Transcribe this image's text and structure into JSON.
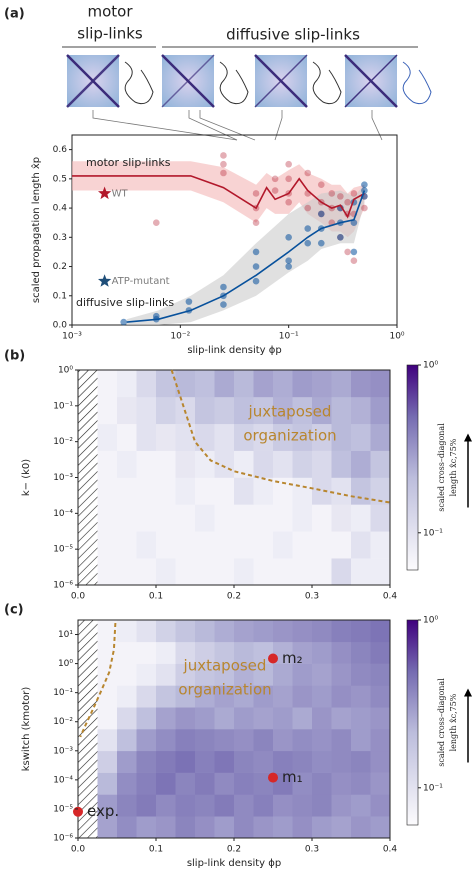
{
  "chart_data": [
    {
      "type": "line",
      "panel_label": "(a)",
      "headers": [
        {
          "lines": [
            "motor",
            "slip-links"
          ]
        },
        {
          "lines": [
            "diffusive slip-links"
          ]
        }
      ],
      "xlabel": "slip-link density ϕp",
      "ylabel": "scaled propagation length x̂p",
      "xlog": true,
      "xlim": [
        0.001,
        1
      ],
      "ylim": [
        0,
        0.65
      ],
      "xticks": [
        {
          "value": 0.001,
          "label": "10⁻³"
        },
        {
          "value": 0.01,
          "label": "10⁻²"
        },
        {
          "value": 0.1,
          "label": "10⁻¹"
        },
        {
          "value": 1,
          "label": "10⁰"
        }
      ],
      "yticks": [
        {
          "value": 0,
          "label": "0.0"
        },
        0.1,
        0.2,
        0.3,
        0.4,
        0.5,
        0.6
      ],
      "series": [
        {
          "name": "motor slip-links",
          "color": "#b2182b",
          "x": [
            0.001,
            0.0032,
            0.0063,
            0.0125,
            0.025,
            0.05,
            0.0625,
            0.075,
            0.1,
            0.125,
            0.15,
            0.2,
            0.25,
            0.3,
            0.35,
            0.4,
            0.5
          ],
          "values": [
            0.51,
            0.51,
            0.51,
            0.51,
            0.47,
            0.4,
            0.47,
            0.43,
            0.45,
            0.5,
            0.46,
            0.42,
            0.4,
            0.41,
            0.37,
            0.43,
            0.45
          ],
          "band_lower": [
            0.46,
            0.46,
            0.46,
            0.46,
            0.42,
            0.35,
            0.4,
            0.38,
            0.38,
            0.42,
            0.38,
            0.35,
            0.32,
            0.32,
            0.3,
            0.32,
            0.4
          ],
          "band_upper": [
            0.56,
            0.56,
            0.56,
            0.56,
            0.54,
            0.48,
            0.52,
            0.5,
            0.53,
            0.55,
            0.52,
            0.5,
            0.48,
            0.48,
            0.45,
            0.47,
            0.48
          ],
          "scatter_x": [
            0.006,
            0.025,
            0.025,
            0.025,
            0.05,
            0.05,
            0.05,
            0.075,
            0.075,
            0.1,
            0.1,
            0.1,
            0.1,
            0.15,
            0.15,
            0.15,
            0.2,
            0.2,
            0.2,
            0.25,
            0.25,
            0.25,
            0.3,
            0.3,
            0.3,
            0.35,
            0.35,
            0.35,
            0.4,
            0.4,
            0.4,
            0.5,
            0.5
          ],
          "scatter_y": [
            0.35,
            0.58,
            0.55,
            0.52,
            0.45,
            0.4,
            0.35,
            0.5,
            0.46,
            0.55,
            0.5,
            0.45,
            0.42,
            0.52,
            0.45,
            0.4,
            0.48,
            0.42,
            0.38,
            0.45,
            0.4,
            0.35,
            0.44,
            0.4,
            0.3,
            0.42,
            0.38,
            0.25,
            0.45,
            0.38,
            0.22,
            0.44,
            0.4
          ]
        },
        {
          "name": "diffusive slip-links",
          "color": "#08519c",
          "x": [
            0.0032,
            0.0063,
            0.0125,
            0.025,
            0.05,
            0.1,
            0.15,
            0.2,
            0.3,
            0.4,
            0.5
          ],
          "values": [
            0.01,
            0.02,
            0.05,
            0.1,
            0.17,
            0.25,
            0.3,
            0.33,
            0.35,
            0.36,
            0.46
          ],
          "band_lower": [
            0,
            0,
            0.01,
            0.05,
            0.1,
            0.18,
            0.22,
            0.26,
            0.28,
            0.28,
            0.42
          ],
          "band_upper": [
            0.02,
            0.05,
            0.1,
            0.17,
            0.28,
            0.38,
            0.42,
            0.45,
            0.46,
            0.44,
            0.48
          ],
          "scatter_x": [
            0.003,
            0.006,
            0.006,
            0.012,
            0.012,
            0.025,
            0.025,
            0.025,
            0.05,
            0.05,
            0.05,
            0.1,
            0.1,
            0.1,
            0.15,
            0.15,
            0.2,
            0.2,
            0.2,
            0.3,
            0.3,
            0.3,
            0.4,
            0.4,
            0.4,
            0.5,
            0.5,
            0.5
          ],
          "scatter_y": [
            0.01,
            0.02,
            0.03,
            0.05,
            0.08,
            0.13,
            0.1,
            0.07,
            0.25,
            0.2,
            0.15,
            0.3,
            0.22,
            0.2,
            0.33,
            0.28,
            0.38,
            0.33,
            0.28,
            0.4,
            0.35,
            0.3,
            0.42,
            0.35,
            0.25,
            0.48,
            0.46,
            0.44
          ]
        }
      ],
      "markers": [
        {
          "label": "WT",
          "x": 0.002,
          "y": 0.45,
          "color": "#b2182b"
        },
        {
          "label": "ATP-mutant",
          "x": 0.002,
          "y": 0.15,
          "color": "#1f4e79"
        }
      ]
    },
    {
      "type": "heatmap",
      "panel_label": "(b)",
      "ylabel": "k− (k0)",
      "xlim": [
        0,
        0.4
      ],
      "ylim": [
        1e-06,
        1
      ],
      "ylog": true,
      "xticks": [
        {
          "value": 0,
          "label": "0.0"
        },
        0.1,
        0.2,
        0.3,
        0.4
      ],
      "yticks": [
        {
          "value": 1e-06,
          "label": "10⁻⁶"
        },
        {
          "value": 1e-05,
          "label": "10⁻⁵"
        },
        {
          "value": 0.0001,
          "label": "10⁻⁴"
        },
        {
          "value": 0.001,
          "label": "10⁻³"
        },
        {
          "value": 0.01,
          "label": "10⁻²"
        },
        {
          "value": 0.1,
          "label": "10⁻¹"
        },
        {
          "value": 1,
          "label": "10⁰"
        }
      ],
      "x_edges": [
        0.025,
        0.05,
        0.075,
        0.1,
        0.125,
        0.15,
        0.175,
        0.2,
        0.225,
        0.25,
        0.275,
        0.3,
        0.325,
        0.35,
        0.375,
        0.4
      ],
      "y_edges": [
        1e-06,
        5.62e-06,
        3.16e-05,
        0.000178,
        0.001,
        0.00562,
        0.0316,
        0.178,
        1
      ],
      "values": [
        [
          0.07,
          0.07,
          0.07,
          0.08,
          0.07,
          0.07,
          0.07,
          0.08,
          0.07,
          0.07,
          0.07,
          0.07,
          0.12,
          0.08,
          0.08
        ],
        [
          0.07,
          0.07,
          0.08,
          0.07,
          0.07,
          0.07,
          0.07,
          0.07,
          0.07,
          0.08,
          0.07,
          0.07,
          0.07,
          0.1,
          0.08
        ],
        [
          0.07,
          0.07,
          0.07,
          0.07,
          0.07,
          0.08,
          0.07,
          0.07,
          0.07,
          0.07,
          0.08,
          0.07,
          0.09,
          0.08,
          0.12
        ],
        [
          0.07,
          0.07,
          0.07,
          0.07,
          0.08,
          0.07,
          0.07,
          0.1,
          0.08,
          0.07,
          0.08,
          0.12,
          0.1,
          0.18,
          0.14
        ],
        [
          0.07,
          0.08,
          0.07,
          0.07,
          0.09,
          0.08,
          0.1,
          0.08,
          0.12,
          0.1,
          0.14,
          0.12,
          0.2,
          0.25,
          0.18
        ],
        [
          0.08,
          0.07,
          0.1,
          0.09,
          0.1,
          0.12,
          0.1,
          0.14,
          0.12,
          0.16,
          0.18,
          0.15,
          0.22,
          0.2,
          0.26
        ],
        [
          0.07,
          0.09,
          0.1,
          0.14,
          0.12,
          0.18,
          0.16,
          0.2,
          0.18,
          0.24,
          0.2,
          0.26,
          0.22,
          0.24,
          0.3
        ],
        [
          0.07,
          0.08,
          0.12,
          0.18,
          0.22,
          0.2,
          0.26,
          0.22,
          0.28,
          0.25,
          0.3,
          0.28,
          0.26,
          0.32,
          0.34
        ]
      ],
      "clim": [
        0.06,
        1
      ],
      "cticks": [
        {
          "value": 1,
          "label": "10⁰"
        },
        {
          "value": 0.1,
          "label": "10⁻¹"
        }
      ],
      "clabel": [
        "scaled cross–diagonal",
        "length x̂c,75%"
      ],
      "annotation": [
        "juxtaposed",
        "organization"
      ],
      "boundary": {
        "x": [
          0.12,
          0.135,
          0.15,
          0.17,
          0.2,
          0.25,
          0.3,
          0.35,
          0.4
        ],
        "y": [
          1,
          0.1,
          0.01,
          0.003,
          0.0015,
          0.0008,
          0.0005,
          0.0003,
          0.0002
        ]
      }
    },
    {
      "type": "heatmap",
      "panel_label": "(c)",
      "ylabel": "kswitch (kmotor)",
      "xlabel": "slip-link density ϕp",
      "xlim": [
        0,
        0.4
      ],
      "ylim": [
        1e-06,
        31.6
      ],
      "ylog": true,
      "xticks": [
        {
          "value": 0,
          "label": "0.0"
        },
        0.1,
        0.2,
        0.3,
        0.4
      ],
      "yticks": [
        {
          "value": 1e-06,
          "label": "10⁻⁶"
        },
        {
          "value": 1e-05,
          "label": "10⁻⁵"
        },
        {
          "value": 0.0001,
          "label": "10⁻⁴"
        },
        {
          "value": 0.001,
          "label": "10⁻³"
        },
        {
          "value": 0.01,
          "label": "10⁻²"
        },
        {
          "value": 0.1,
          "label": "10⁻¹"
        },
        {
          "value": 1,
          "label": "10⁰"
        },
        {
          "value": 10,
          "label": "10¹"
        }
      ],
      "x_edges": [
        0.025,
        0.05,
        0.075,
        0.1,
        0.125,
        0.15,
        0.175,
        0.2,
        0.225,
        0.25,
        0.275,
        0.3,
        0.325,
        0.35,
        0.375,
        0.4
      ],
      "y_edges": [
        1e-06,
        5.62e-06,
        3.16e-05,
        0.000178,
        0.001,
        0.00562,
        0.0316,
        0.178,
        1,
        5.62,
        31.6
      ],
      "values": [
        [
          0.28,
          0.35,
          0.3,
          0.32,
          0.38,
          0.34,
          0.3,
          0.36,
          0.32,
          0.3,
          0.34,
          0.3,
          0.28,
          0.32,
          0.3
        ],
        [
          0.3,
          0.38,
          0.42,
          0.36,
          0.4,
          0.38,
          0.42,
          0.36,
          0.4,
          0.34,
          0.36,
          0.38,
          0.32,
          0.3,
          0.34
        ],
        [
          0.22,
          0.35,
          0.4,
          0.45,
          0.38,
          0.42,
          0.36,
          0.4,
          0.38,
          0.42,
          0.35,
          0.38,
          0.34,
          0.36,
          0.32
        ],
        [
          0.15,
          0.3,
          0.38,
          0.42,
          0.46,
          0.4,
          0.44,
          0.38,
          0.36,
          0.4,
          0.38,
          0.35,
          0.36,
          0.38,
          0.34
        ],
        [
          0.1,
          0.2,
          0.3,
          0.35,
          0.4,
          0.38,
          0.36,
          0.34,
          0.38,
          0.32,
          0.35,
          0.33,
          0.36,
          0.3,
          0.34
        ],
        [
          0.07,
          0.12,
          0.2,
          0.28,
          0.32,
          0.3,
          0.26,
          0.3,
          0.28,
          0.3,
          0.26,
          0.32,
          0.28,
          0.3,
          0.32
        ],
        [
          0.07,
          0.08,
          0.12,
          0.18,
          0.22,
          0.25,
          0.28,
          0.26,
          0.3,
          0.28,
          0.32,
          0.3,
          0.34,
          0.32,
          0.36
        ],
        [
          0.07,
          0.07,
          0.08,
          0.1,
          0.15,
          0.18,
          0.2,
          0.24,
          0.22,
          0.26,
          0.3,
          0.28,
          0.32,
          0.36,
          0.38
        ],
        [
          0.07,
          0.07,
          0.07,
          0.08,
          0.12,
          0.15,
          0.18,
          0.22,
          0.2,
          0.24,
          0.28,
          0.3,
          0.34,
          0.38,
          0.42
        ],
        [
          0.07,
          0.08,
          0.1,
          0.14,
          0.18,
          0.22,
          0.25,
          0.28,
          0.3,
          0.32,
          0.34,
          0.36,
          0.4,
          0.42,
          0.45
        ]
      ],
      "clim": [
        0.06,
        1
      ],
      "cticks": [
        {
          "value": 1,
          "label": "10⁰"
        },
        {
          "value": 0.1,
          "label": "10⁻¹"
        }
      ],
      "clabel": [
        "scaled cross–diagonal",
        "length x̂c,75%"
      ],
      "annotation": [
        "juxtaposed",
        "organization"
      ],
      "boundary": {
        "x": [
          0.048,
          0.046,
          0.04,
          0.03,
          0.02,
          0.01,
          0.003
        ],
        "y": [
          25,
          3,
          0.5,
          0.12,
          0.03,
          0.008,
          0.003
        ]
      },
      "points": [
        {
          "label": "m₂",
          "x": 0.25,
          "y": 1.5
        },
        {
          "label": "m₁",
          "x": 0.25,
          "y": 0.00012
        },
        {
          "label": "exp.",
          "x": 0,
          "y": 8e-06
        }
      ],
      "point_color": "#d62728"
    }
  ]
}
